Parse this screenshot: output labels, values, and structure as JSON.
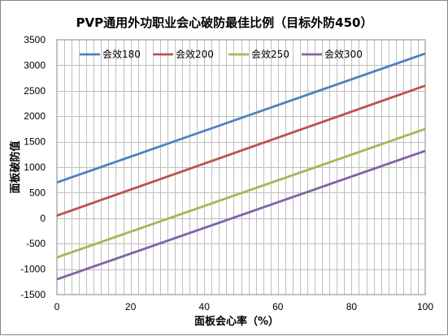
{
  "chart_data": {
    "type": "line",
    "title": "PVP通用外功职业会心破防最佳比例（目标外防450）",
    "xlabel": "面板会心率（%）",
    "ylabel": "面板破防值",
    "xlim": [
      0,
      100
    ],
    "ylim": [
      -1500,
      3500
    ],
    "x_ticks": [
      "0",
      "20",
      "40",
      "60",
      "80",
      "100"
    ],
    "y_ticks": [
      "-1500",
      "-1000",
      "-500",
      "0",
      "500",
      "1000",
      "1500",
      "2000",
      "2500",
      "3000",
      "3500"
    ],
    "x_minor_grid_step": 2,
    "y_grid_step": 500,
    "grid": true,
    "legend_position": "top",
    "x": [
      0,
      100
    ],
    "series": [
      {
        "name": "会效180",
        "color": "#4f81bd",
        "values": [
          700,
          3230
        ]
      },
      {
        "name": "会效200",
        "color": "#c0504d",
        "values": [
          50,
          2600
        ]
      },
      {
        "name": "会效250",
        "color": "#9bbb59",
        "values": [
          -770,
          1750
        ]
      },
      {
        "name": "会效300",
        "color": "#8064a2",
        "values": [
          -1200,
          1320
        ]
      }
    ]
  }
}
